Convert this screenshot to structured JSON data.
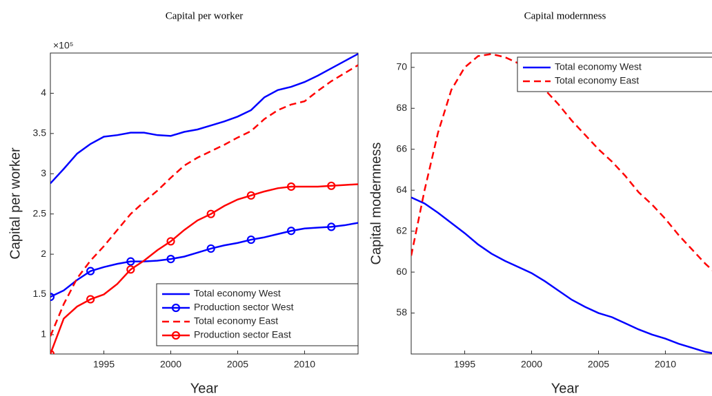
{
  "chart_data": [
    {
      "type": "line",
      "title": "Capital per worker",
      "x_label": "Year",
      "y_label": "Capital per worker",
      "y_multiplier": "×10⁵",
      "x": [
        1991,
        1992,
        1993,
        1994,
        1995,
        1996,
        1997,
        1998,
        1999,
        2000,
        2001,
        2002,
        2003,
        2004,
        2005,
        2006,
        2007,
        2008,
        2009,
        2010,
        2011,
        2012,
        2013,
        2014
      ],
      "xlim": [
        1991,
        2014
      ],
      "xticks": [
        1995,
        2000,
        2005,
        2010
      ],
      "ylim": [
        0.76,
        4.5
      ],
      "yticks": [
        1,
        1.5,
        2,
        2.5,
        3,
        3.5,
        4
      ],
      "grid": false,
      "legend": "lower right",
      "marker_every": 3,
      "series": [
        {
          "name": "Total economy West",
          "color": "#0000ff",
          "dash": false,
          "marker": null,
          "values": [
            2.88,
            3.06,
            3.25,
            3.37,
            3.46,
            3.48,
            3.51,
            3.51,
            3.48,
            3.47,
            3.52,
            3.55,
            3.6,
            3.65,
            3.71,
            3.79,
            3.95,
            4.04,
            4.08,
            4.14,
            4.22,
            4.31,
            4.4,
            4.49
          ]
        },
        {
          "name": "Production sector West",
          "color": "#0000ff",
          "dash": false,
          "marker": "circle",
          "values": [
            1.47,
            1.55,
            1.68,
            1.79,
            1.84,
            1.88,
            1.91,
            1.91,
            1.92,
            1.94,
            1.97,
            2.02,
            2.07,
            2.11,
            2.14,
            2.18,
            2.21,
            2.25,
            2.29,
            2.32,
            2.33,
            2.34,
            2.36,
            2.39
          ]
        },
        {
          "name": "Total economy East",
          "color": "#ff0000",
          "dash": true,
          "marker": null,
          "values": [
            0.98,
            1.38,
            1.7,
            1.92,
            2.1,
            2.3,
            2.5,
            2.65,
            2.79,
            2.95,
            3.1,
            3.2,
            3.28,
            3.36,
            3.45,
            3.53,
            3.68,
            3.79,
            3.86,
            3.9,
            4.03,
            4.15,
            4.25,
            4.35
          ]
        },
        {
          "name": "Production sector East",
          "color": "#ff0000",
          "dash": false,
          "marker": "circle",
          "values": [
            0.76,
            1.2,
            1.35,
            1.44,
            1.5,
            1.63,
            1.81,
            1.92,
            2.05,
            2.16,
            2.3,
            2.42,
            2.5,
            2.6,
            2.68,
            2.73,
            2.78,
            2.82,
            2.84,
            2.84,
            2.84,
            2.85,
            2.86,
            2.87
          ]
        }
      ]
    },
    {
      "type": "line",
      "title": "Capital modernness",
      "x_label": "Year",
      "y_label": "Capital modernness",
      "x": [
        1991,
        1992,
        1993,
        1994,
        1995,
        1996,
        1997,
        1998,
        1999,
        2000,
        2001,
        2002,
        2003,
        2004,
        2005,
        2006,
        2007,
        2008,
        2009,
        2010,
        2011,
        2012,
        2013,
        2014
      ],
      "xlim": [
        1991,
        2014
      ],
      "xticks": [
        1995,
        2000,
        2005,
        2010
      ],
      "ylim": [
        56,
        70.7
      ],
      "yticks": [
        58,
        60,
        62,
        64,
        66,
        68,
        70
      ],
      "grid": false,
      "legend": "upper right",
      "series": [
        {
          "name": "Total economy West",
          "color": "#0000ff",
          "dash": false,
          "marker": null,
          "values": [
            63.65,
            63.35,
            62.9,
            62.4,
            61.9,
            61.35,
            60.9,
            60.55,
            60.25,
            59.95,
            59.55,
            59.1,
            58.65,
            58.3,
            58.0,
            57.8,
            57.5,
            57.2,
            56.95,
            56.75,
            56.5,
            56.3,
            56.1,
            56.0
          ]
        },
        {
          "name": "Total economy East",
          "color": "#ff0000",
          "dash": true,
          "marker": null,
          "values": [
            60.8,
            64.0,
            66.8,
            68.9,
            70.0,
            70.55,
            70.65,
            70.5,
            70.2,
            69.6,
            68.9,
            68.2,
            67.4,
            66.7,
            66.0,
            65.4,
            64.7,
            63.9,
            63.3,
            62.6,
            61.8,
            61.1,
            60.4,
            59.8
          ]
        }
      ]
    }
  ]
}
